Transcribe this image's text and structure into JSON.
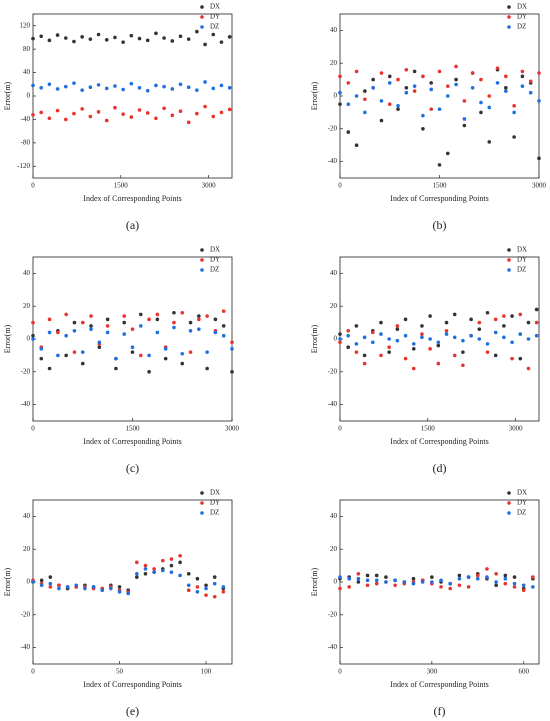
{
  "chart_data": [
    {
      "type": "scatter",
      "caption": "(a)",
      "xlabel": "Index of Corresponding Points",
      "ylabel": "Error(m)",
      "legend": "upper right",
      "xlim": [
        0,
        3400
      ],
      "xticks": [
        0,
        1500,
        3000
      ],
      "ylim": [
        -140,
        140
      ],
      "yticks": [
        -120,
        -80,
        -40,
        0,
        40,
        80,
        120
      ],
      "x": [
        0,
        140,
        280,
        420,
        560,
        700,
        840,
        980,
        1120,
        1260,
        1400,
        1540,
        1680,
        1820,
        1960,
        2100,
        2240,
        2380,
        2520,
        2660,
        2800,
        2940,
        3080,
        3220,
        3360
      ],
      "series": [
        {
          "name": "DX",
          "color": "#333333",
          "values": [
            98,
            102,
            95,
            104,
            99,
            93,
            101,
            97,
            105,
            96,
            100,
            92,
            103,
            98,
            95,
            107,
            99,
            94,
            102,
            97,
            110,
            88,
            105,
            92,
            101
          ]
        },
        {
          "name": "DY",
          "color": "#e8332e",
          "values": [
            -32,
            -28,
            -38,
            -25,
            -40,
            -30,
            -22,
            -35,
            -27,
            -42,
            -20,
            -31,
            -36,
            -24,
            -29,
            -38,
            -21,
            -33,
            -26,
            -45,
            -30,
            -18,
            -35,
            -28,
            -23
          ]
        },
        {
          "name": "DZ",
          "color": "#1f6fe0",
          "values": [
            18,
            14,
            20,
            12,
            16,
            22,
            10,
            15,
            19,
            13,
            17,
            11,
            21,
            14,
            9,
            18,
            16,
            12,
            20,
            15,
            10,
            24,
            13,
            18,
            14
          ]
        }
      ]
    },
    {
      "type": "scatter",
      "caption": "(b)",
      "xlabel": "Index of Corresponding Points",
      "ylabel": "Error(m)",
      "legend": "upper right",
      "xlim": [
        0,
        3000
      ],
      "xticks": [
        0,
        1500,
        3000
      ],
      "ylim": [
        -50,
        50
      ],
      "yticks": [
        -40,
        -20,
        0,
        20,
        40
      ],
      "x": [
        0,
        125,
        250,
        375,
        500,
        625,
        750,
        875,
        1000,
        1125,
        1250,
        1375,
        1500,
        1625,
        1750,
        1875,
        2000,
        2125,
        2250,
        2375,
        2500,
        2625,
        2750,
        2875,
        3000
      ],
      "series": [
        {
          "name": "DX",
          "color": "#333333",
          "values": [
            -5,
            -22,
            -30,
            3,
            10,
            -15,
            12,
            -8,
            5,
            15,
            -20,
            8,
            -42,
            -35,
            10,
            -18,
            14,
            -10,
            -28,
            16,
            5,
            -25,
            12,
            8,
            -38
          ]
        },
        {
          "name": "DY",
          "color": "#e8332e",
          "values": [
            12,
            8,
            15,
            -2,
            5,
            14,
            -5,
            10,
            16,
            3,
            12,
            -8,
            15,
            6,
            18,
            -3,
            14,
            10,
            0,
            17,
            12,
            -6,
            15,
            9,
            14
          ]
        },
        {
          "name": "DZ",
          "color": "#1f6fe0",
          "values": [
            2,
            -5,
            0,
            -10,
            5,
            -3,
            8,
            -6,
            2,
            6,
            -12,
            4,
            -8,
            0,
            7,
            -14,
            5,
            -4,
            -7,
            8,
            3,
            -10,
            6,
            2,
            -3
          ]
        }
      ]
    },
    {
      "type": "scatter",
      "caption": "(c)",
      "xlabel": "Index of Corresponding Points",
      "ylabel": "Error(m)",
      "legend": "upper right",
      "xlim": [
        0,
        3000
      ],
      "xticks": [
        0,
        1500,
        3000
      ],
      "ylim": [
        -50,
        50
      ],
      "yticks": [
        -40,
        -20,
        0,
        20,
        40
      ],
      "x": [
        0,
        125,
        250,
        375,
        500,
        625,
        750,
        875,
        1000,
        1125,
        1250,
        1375,
        1500,
        1625,
        1750,
        1875,
        2000,
        2125,
        2250,
        2375,
        2500,
        2625,
        2750,
        2875,
        3000
      ],
      "series": [
        {
          "name": "DX",
          "color": "#333333",
          "values": [
            2,
            -12,
            -18,
            5,
            -10,
            10,
            -15,
            8,
            -5,
            12,
            -18,
            10,
            -8,
            15,
            -20,
            12,
            -12,
            16,
            -15,
            10,
            14,
            -18,
            12,
            8,
            -20
          ]
        },
        {
          "name": "DY",
          "color": "#e8332e",
          "values": [
            10,
            -5,
            12,
            4,
            15,
            -8,
            10,
            14,
            -3,
            8,
            -12,
            14,
            6,
            -10,
            12,
            15,
            -5,
            10,
            16,
            -8,
            12,
            14,
            5,
            17,
            -2
          ]
        },
        {
          "name": "DZ",
          "color": "#1f6fe0",
          "values": [
            0,
            -6,
            4,
            -10,
            2,
            5,
            -8,
            6,
            -2,
            4,
            -12,
            3,
            -5,
            8,
            -10,
            4,
            -6,
            7,
            -9,
            5,
            6,
            -8,
            4,
            2,
            -6
          ]
        }
      ]
    },
    {
      "type": "scatter",
      "caption": "(d)",
      "xlabel": "Index of Corresponding Points",
      "ylabel": "Error(m)",
      "legend": "upper right",
      "xlim": [
        0,
        3400
      ],
      "xticks": [
        0,
        1500,
        3000
      ],
      "ylim": [
        -50,
        50
      ],
      "yticks": [
        -40,
        -20,
        0,
        20,
        40
      ],
      "x": [
        0,
        140,
        280,
        420,
        560,
        700,
        840,
        980,
        1120,
        1260,
        1400,
        1540,
        1680,
        1820,
        1960,
        2100,
        2240,
        2380,
        2520,
        2660,
        2800,
        2940,
        3080,
        3220,
        3360
      ],
      "series": [
        {
          "name": "DX",
          "color": "#333333",
          "values": [
            3,
            -5,
            8,
            -10,
            5,
            10,
            -8,
            6,
            12,
            -6,
            8,
            14,
            -4,
            10,
            15,
            -8,
            12,
            6,
            16,
            -10,
            8,
            14,
            -12,
            10,
            18
          ]
        },
        {
          "name": "DY",
          "color": "#e8332e",
          "values": [
            -2,
            5,
            -8,
            -15,
            4,
            -10,
            -5,
            8,
            -12,
            -18,
            3,
            -6,
            -15,
            5,
            -10,
            -16,
            2,
            10,
            -8,
            12,
            14,
            -12,
            15,
            -18,
            10
          ]
        },
        {
          "name": "DZ",
          "color": "#1f6fe0",
          "values": [
            0,
            2,
            -3,
            1,
            -2,
            3,
            0,
            -1,
            2,
            -3,
            1,
            0,
            -2,
            3,
            1,
            -1,
            2,
            0,
            -3,
            4,
            1,
            -2,
            3,
            0,
            2
          ]
        }
      ]
    },
    {
      "type": "scatter",
      "caption": "(e)",
      "xlabel": "Index of Corresponding Points",
      "ylabel": "Error(m)",
      "legend": "upper right",
      "xlim": [
        0,
        115
      ],
      "xticks": [
        0,
        50,
        100
      ],
      "ylim": [
        -50,
        50
      ],
      "yticks": [
        -40,
        -20,
        0,
        20,
        40
      ],
      "x": [
        0,
        5,
        10,
        15,
        20,
        25,
        30,
        35,
        40,
        45,
        50,
        55,
        60,
        65,
        70,
        75,
        80,
        85,
        90,
        95,
        100,
        105,
        110
      ],
      "series": [
        {
          "name": "DX",
          "color": "#333333",
          "values": [
            0,
            1,
            3,
            -2,
            -4,
            -3,
            -2,
            -3,
            -4,
            -2,
            -3,
            -5,
            3,
            5,
            6,
            8,
            10,
            12,
            5,
            2,
            -2,
            3,
            -4
          ]
        },
        {
          "name": "DY",
          "color": "#e8332e",
          "values": [
            1,
            -1,
            -3,
            -2,
            -3,
            -3,
            -3,
            -4,
            -4,
            -3,
            -5,
            -6,
            12,
            10,
            8,
            13,
            14,
            16,
            -5,
            -3,
            -8,
            -9,
            -6
          ]
        },
        {
          "name": "DZ",
          "color": "#1f6fe0",
          "values": [
            0,
            -2,
            -1,
            -4,
            -3,
            -2,
            -4,
            -3,
            -5,
            -4,
            -6,
            -7,
            5,
            8,
            6,
            7,
            6,
            4,
            -2,
            -6,
            -4,
            -1,
            -3
          ]
        }
      ]
    },
    {
      "type": "scatter",
      "caption": "(f)",
      "xlabel": "Index of Corresponding Points",
      "ylabel": "Error(m)",
      "legend": "upper right",
      "xlim": [
        0,
        650
      ],
      "xticks": [
        0,
        300,
        600
      ],
      "ylim": [
        -50,
        50
      ],
      "yticks": [
        -40,
        -20,
        0,
        20,
        40
      ],
      "x": [
        0,
        30,
        60,
        90,
        120,
        150,
        180,
        210,
        240,
        270,
        300,
        330,
        360,
        390,
        420,
        450,
        480,
        510,
        540,
        570,
        600,
        630
      ],
      "series": [
        {
          "name": "DX",
          "color": "#333333",
          "values": [
            2,
            3,
            0,
            4,
            4,
            3,
            1,
            0,
            2,
            1,
            3,
            0,
            -1,
            4,
            3,
            5,
            2,
            -2,
            4,
            3,
            -4,
            2
          ]
        },
        {
          "name": "DY",
          "color": "#e8332e",
          "values": [
            -4,
            -3,
            5,
            -2,
            -1,
            0,
            -2,
            -1,
            0,
            1,
            -1,
            -3,
            -4,
            -2,
            -3,
            4,
            8,
            5,
            -1,
            -3,
            -5,
            3
          ]
        },
        {
          "name": "DZ",
          "color": "#1f6fe0",
          "values": [
            3,
            2,
            2,
            1,
            1,
            0,
            1,
            0,
            -1,
            0,
            0,
            1,
            -1,
            2,
            3,
            2,
            3,
            0,
            2,
            -1,
            -2,
            -3
          ]
        }
      ]
    }
  ]
}
